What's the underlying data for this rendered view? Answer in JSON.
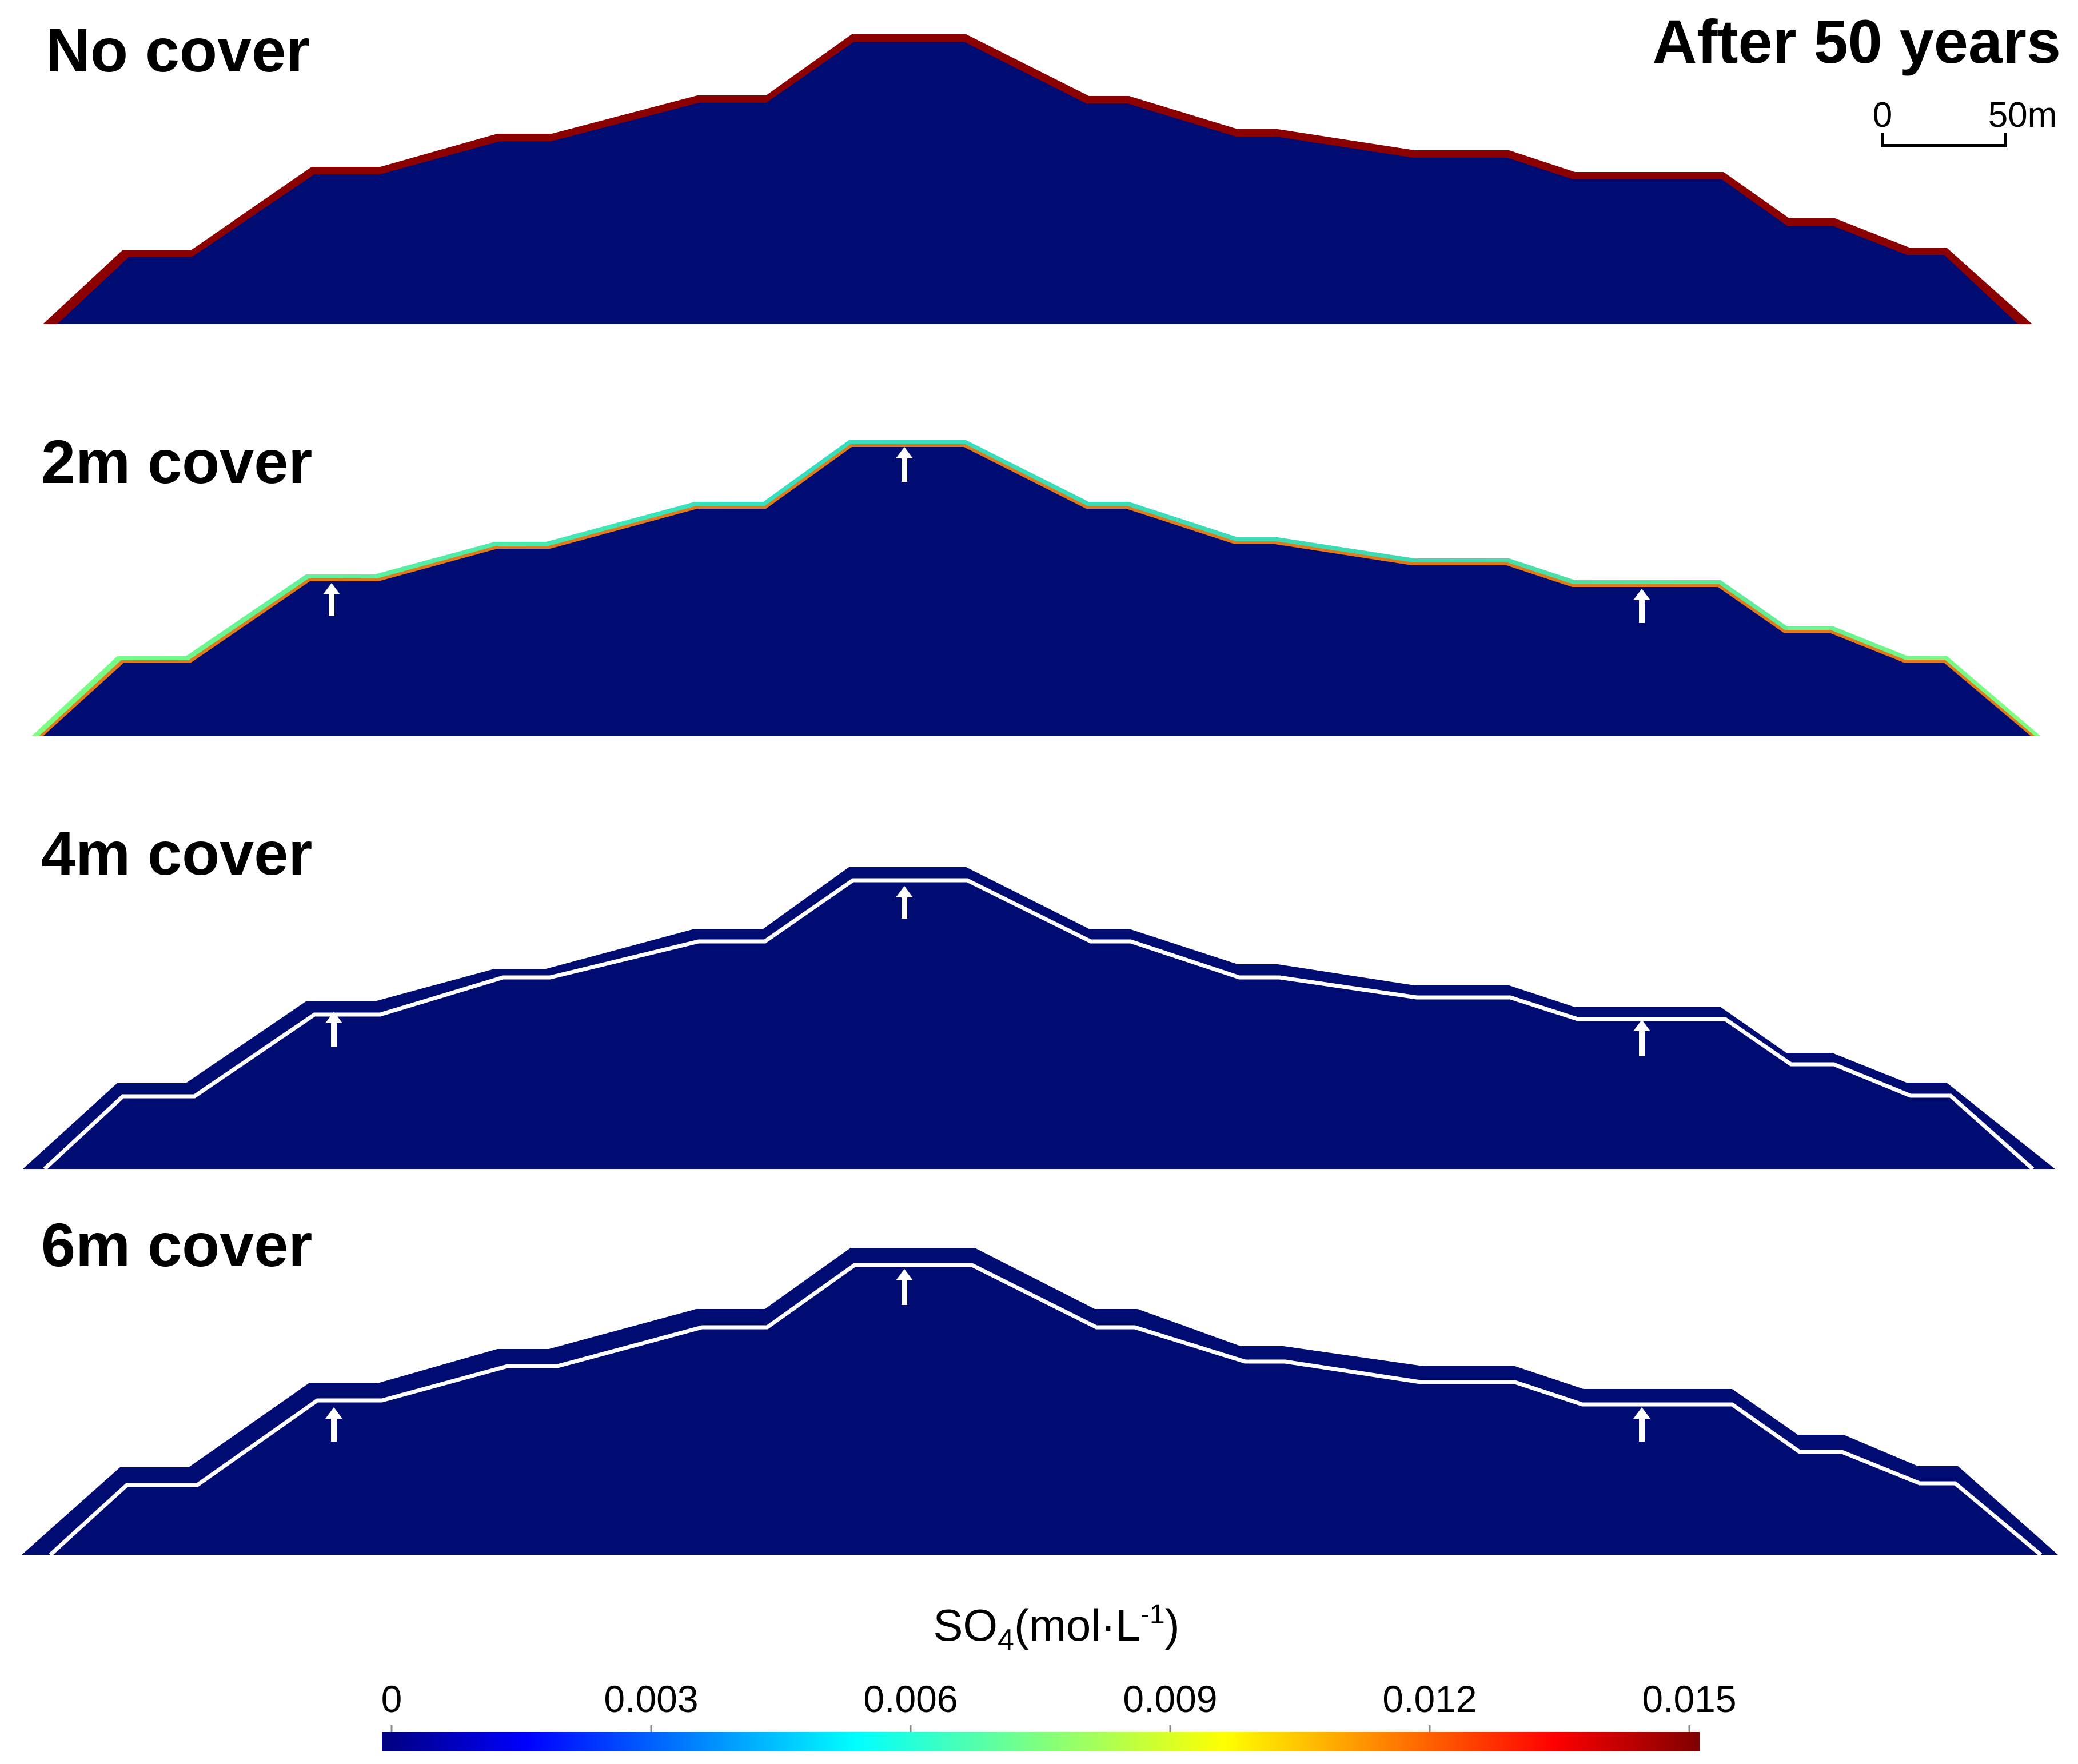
{
  "panels": [
    {
      "id": "no-cover",
      "label": "No cover",
      "cover": "none"
    },
    {
      "id": "2m-cover",
      "label": "2m cover",
      "cover": "thin"
    },
    {
      "id": "4m-cover",
      "label": "4m cover",
      "cover": "medium"
    },
    {
      "id": "6m-cover",
      "label": "6m cover",
      "cover": "thick"
    }
  ],
  "time_label": "After 50 years",
  "scale_bar": {
    "start": "0",
    "end": "50m"
  },
  "colorbar": {
    "title_prefix": "SO",
    "title_sub": "4",
    "title_rest": "(mol·L",
    "title_sup": "-1",
    "title_close": ")",
    "ticks": [
      "0",
      "0.003",
      "0.006",
      "0.009",
      "0.012",
      "0.015"
    ],
    "min": 0,
    "max": 0.015,
    "colormap": "jet",
    "colors": [
      "#00007f",
      "#0000ff",
      "#007fff",
      "#00ffff",
      "#7fff7f",
      "#ffff00",
      "#ff7f00",
      "#ff0000",
      "#7f0000"
    ]
  },
  "colors": {
    "background_field": "#000c72",
    "high_concentration": "#8b0000",
    "cover_interface": "#ffffff"
  }
}
